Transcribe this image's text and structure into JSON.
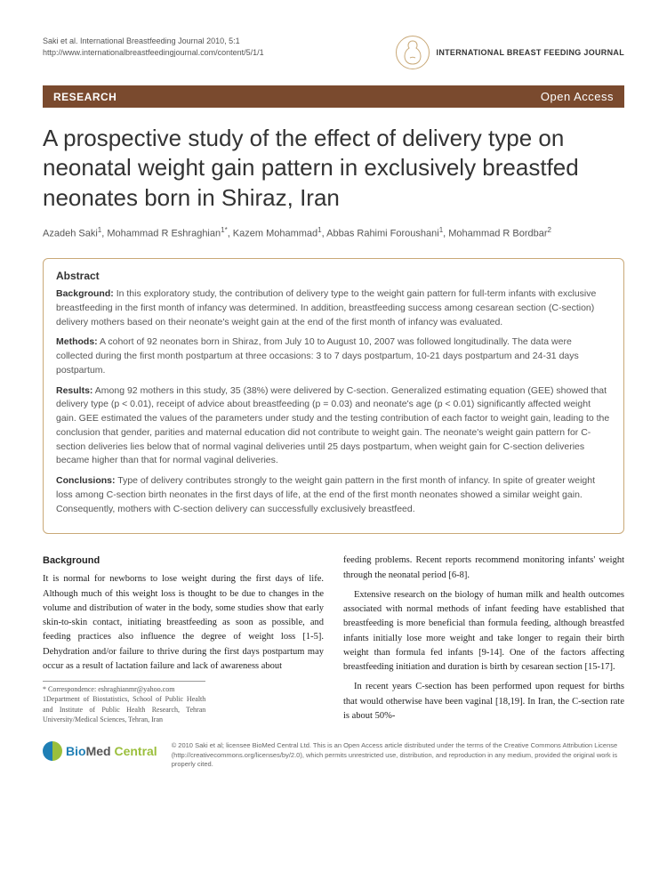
{
  "header": {
    "citation_line1": "Saki et al. International Breastfeeding Journal 2010, 5:1",
    "citation_line2": "http://www.internationalbreastfeedingjournal.com/content/5/1/1",
    "journal_name": "INTERNATIONAL BREAST FEEDING JOURNAL"
  },
  "banner": {
    "left": "RESEARCH",
    "right": "Open Access"
  },
  "title": "A prospective study of the effect of delivery type on neonatal weight gain pattern in exclusively breastfed neonates born in Shiraz, Iran",
  "authors_html": "Azadeh Saki<sup>1</sup>, Mohammad R Eshraghian<sup>1*</sup>, Kazem Mohammad<sup>1</sup>, Abbas Rahimi Foroushani<sup>1</sup>, Mohammad R Bordbar<sup>2</sup>",
  "abstract": {
    "heading": "Abstract",
    "background_label": "Background:",
    "background": "In this exploratory study, the contribution of delivery type to the weight gain pattern for full-term infants with exclusive breastfeeding in the first month of infancy was determined. In addition, breastfeeding success among cesarean section (C-section) delivery mothers based on their neonate's weight gain at the end of the first month of infancy was evaluated.",
    "methods_label": "Methods:",
    "methods": "A cohort of 92 neonates born in Shiraz, from July 10 to August 10, 2007 was followed longitudinally. The data were collected during the first month postpartum at three occasions: 3 to 7 days postpartum, 10-21 days postpartum and 24-31 days postpartum.",
    "results_label": "Results:",
    "results": "Among 92 mothers in this study, 35 (38%) were delivered by C-section. Generalized estimating equation (GEE) showed that delivery type (p < 0.01), receipt of advice about breastfeeding (p = 0.03) and neonate's age (p < 0.01) significantly affected weight gain. GEE estimated the values of the parameters under study and the testing contribution of each factor to weight gain, leading to the conclusion that gender, parities and maternal education did not contribute to weight gain. The neonate's weight gain pattern for C-section deliveries lies below that of normal vaginal deliveries until 25 days postpartum, when weight gain for C-section deliveries became higher than that for normal vaginal deliveries.",
    "conclusions_label": "Conclusions:",
    "conclusions": "Type of delivery contributes strongly to the weight gain pattern in the first month of infancy. In spite of greater weight loss among C-section birth neonates in the first days of life, at the end of the first month neonates showed a similar weight gain. Consequently, mothers with C-section delivery can successfully exclusively breastfeed."
  },
  "body": {
    "background_heading": "Background",
    "left_p1": "It is normal for newborns to lose weight during the first days of life. Although much of this weight loss is thought to be due to changes in the volume and distribution of water in the body, some studies show that early skin-to-skin contact, initiating breastfeeding as soon as possible, and feeding practices also influence the degree of weight loss [1-5]. Dehydration and/or failure to thrive during the first days postpartum may occur as a result of lactation failure and lack of awareness about",
    "right_p1": "feeding problems. Recent reports recommend monitoring infants' weight through the neonatal period [6-8].",
    "right_p2": "Extensive research on the biology of human milk and health outcomes associated with normal methods of infant feeding have established that breastfeeding is more beneficial than formula feeding, although breastfed infants initially lose more weight and take longer to regain their birth weight than formula fed infants [9-14]. One of the factors affecting breastfeeding initiation and duration is birth by cesarean section [15-17].",
    "right_p3": "In recent years C-section has been performed upon request for births that would otherwise have been vaginal [18,19]. In Iran, the C-section rate is about 50%-"
  },
  "correspondence": {
    "line1": "* Correspondence: eshraghianmr@yahoo.com",
    "line2": "1Department of Biostatistics, School of Public Health and Institute of Public Health Research, Tehran University/Medical Sciences, Tehran, Iran"
  },
  "footer": {
    "bmc_bio": "Bio",
    "bmc_med": "Med",
    "bmc_central": " Central",
    "license": "© 2010 Saki et al; licensee BioMed Central Ltd. This is an Open Access article distributed under the terms of the Creative Commons Attribution License (http://creativecommons.org/licenses/by/2.0), which permits unrestricted use, distribution, and reproduction in any medium, provided the original work is properly cited."
  },
  "colors": {
    "banner_bg": "#7a4a2e",
    "abstract_border": "#c9a978",
    "bmc_blue": "#1f7fb5",
    "bmc_green": "#9bbf3c"
  }
}
